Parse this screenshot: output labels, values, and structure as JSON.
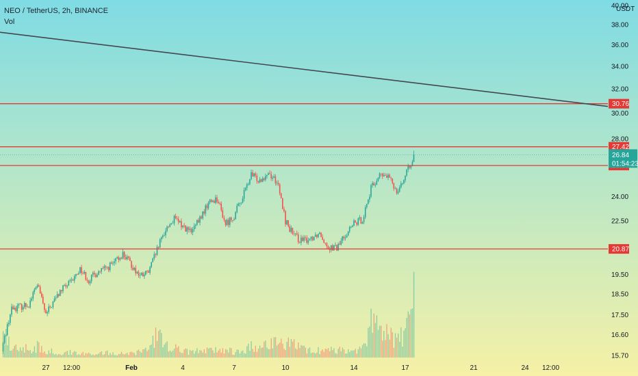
{
  "header": {
    "symbol": "NEO / TetherUS, 2h, BINANCE",
    "volume_label": "Vol"
  },
  "colors": {
    "up": "#26a69a",
    "down": "#ef5350",
    "level_line": "#e53935",
    "trend_line": "#434651",
    "bg_top": "#7fdbe4",
    "bg_bottom": "#f6f1a6"
  },
  "chart_data": {
    "type": "candlestick",
    "title": "NEO / TetherUS, 2h, BINANCE",
    "currency_label": "USDT",
    "y_axis": {
      "labels": [
        "40.00",
        "38.00",
        "36.00",
        "34.00",
        "32.00",
        "30.00",
        "28.00",
        "24.00",
        "22.50",
        "19.50",
        "18.50",
        "17.50",
        "16.60",
        "15.70"
      ],
      "values": [
        40,
        38,
        36,
        34,
        32,
        30,
        28,
        24,
        22.5,
        19.5,
        18.5,
        17.5,
        16.6,
        15.7
      ],
      "scale": "log"
    },
    "x_axis": {
      "labels": [
        "27",
        "12:00",
        "Feb",
        "4",
        "7",
        "10",
        "14",
        "17",
        "21",
        "24",
        "12:00"
      ]
    },
    "price_levels": [
      {
        "label": "30.76",
        "value": 30.76
      },
      {
        "label": "27.42",
        "value": 27.42
      },
      {
        "label": "26.08",
        "value": 26.08
      },
      {
        "label": "20.87",
        "value": 20.87
      }
    ],
    "last_price": {
      "label": "26.84",
      "value": 26.84,
      "countdown": "01:54:23"
    },
    "trend_line": {
      "start": {
        "date": "Jan 24",
        "price": 37.3
      },
      "end": {
        "date": "Feb 25",
        "price": 31.2
      }
    },
    "series": [
      {
        "name": "Close",
        "points": [
          {
            "date": "Jan 24 12:00",
            "close": 16.2
          },
          {
            "date": "Jan 25 00:00",
            "close": 17.8
          },
          {
            "date": "Jan 26 00:00",
            "close": 18.0
          },
          {
            "date": "Jan 26 12:00",
            "close": 19.0
          },
          {
            "date": "Jan 27 00:00",
            "close": 17.5
          },
          {
            "date": "Jan 27 12:00",
            "close": 18.2
          },
          {
            "date": "Jan 28 00:00",
            "close": 18.8
          },
          {
            "date": "Jan 28 12:00",
            "close": 19.1
          },
          {
            "date": "Jan 29 00:00",
            "close": 19.8
          },
          {
            "date": "Jan 29 12:00",
            "close": 19.2
          },
          {
            "date": "Jan 30 00:00",
            "close": 19.6
          },
          {
            "date": "Jan 30 12:00",
            "close": 19.8
          },
          {
            "date": "Jan 31 00:00",
            "close": 20.1
          },
          {
            "date": "Jan 31 12:00",
            "close": 20.6
          },
          {
            "date": "Feb 1 00:00",
            "close": 20.0
          },
          {
            "date": "Feb 1 12:00",
            "close": 19.4
          },
          {
            "date": "Feb 2 00:00",
            "close": 19.6
          },
          {
            "date": "Feb 2 12:00",
            "close": 20.8
          },
          {
            "date": "Feb 3 00:00",
            "close": 22.0
          },
          {
            "date": "Feb 3 12:00",
            "close": 22.6
          },
          {
            "date": "Feb 4 00:00",
            "close": 22.2
          },
          {
            "date": "Feb 4 12:00",
            "close": 21.8
          },
          {
            "date": "Feb 5 00:00",
            "close": 22.6
          },
          {
            "date": "Feb 5 12:00",
            "close": 23.6
          },
          {
            "date": "Feb 6 00:00",
            "close": 23.9
          },
          {
            "date": "Feb 6 12:00",
            "close": 22.3
          },
          {
            "date": "Feb 7 00:00",
            "close": 22.8
          },
          {
            "date": "Feb 7 12:00",
            "close": 24.0
          },
          {
            "date": "Feb 8 00:00",
            "close": 25.4
          },
          {
            "date": "Feb 8 12:00",
            "close": 25.1
          },
          {
            "date": "Feb 9 00:00",
            "close": 25.6
          },
          {
            "date": "Feb 9 12:00",
            "close": 25.0
          },
          {
            "date": "Feb 10 00:00",
            "close": 22.5
          },
          {
            "date": "Feb 10 12:00",
            "close": 21.6
          },
          {
            "date": "Feb 11 00:00",
            "close": 21.3
          },
          {
            "date": "Feb 11 12:00",
            "close": 21.5
          },
          {
            "date": "Feb 12 00:00",
            "close": 21.8
          },
          {
            "date": "Feb 12 12:00",
            "close": 21.0
          },
          {
            "date": "Feb 13 00:00",
            "close": 20.9
          },
          {
            "date": "Feb 13 12:00",
            "close": 21.7
          },
          {
            "date": "Feb 14 00:00",
            "close": 22.3
          },
          {
            "date": "Feb 14 12:00",
            "close": 22.6
          },
          {
            "date": "Feb 15 00:00",
            "close": 24.5
          },
          {
            "date": "Feb 15 12:00",
            "close": 25.4
          },
          {
            "date": "Feb 16 00:00",
            "close": 25.3
          },
          {
            "date": "Feb 16 12:00",
            "close": 24.4
          },
          {
            "date": "Feb 17 00:00",
            "close": 25.3
          },
          {
            "date": "Feb 17 12:00",
            "close": 26.84
          }
        ]
      },
      {
        "name": "Vol",
        "points": [
          {
            "date": "Jan 24 12:00",
            "volume": 1.6
          },
          {
            "date": "Jan 25 00:00",
            "volume": 0.9
          },
          {
            "date": "Jan 26 00:00",
            "volume": 0.6
          },
          {
            "date": "Jan 26 12:00",
            "volume": 0.8
          },
          {
            "date": "Jan 27 00:00",
            "volume": 0.5
          },
          {
            "date": "Jan 27 12:00",
            "volume": 0.4
          },
          {
            "date": "Jan 28 00:00",
            "volume": 0.35
          },
          {
            "date": "Jan 28 12:00",
            "volume": 0.4
          },
          {
            "date": "Jan 29 00:00",
            "volume": 0.4
          },
          {
            "date": "Jan 29 12:00",
            "volume": 0.3
          },
          {
            "date": "Jan 30 00:00",
            "volume": 0.3
          },
          {
            "date": "Jan 30 12:00",
            "volume": 0.35
          },
          {
            "date": "Jan 31 00:00",
            "volume": 0.3
          },
          {
            "date": "Jan 31 12:00",
            "volume": 0.35
          },
          {
            "date": "Feb 1 00:00",
            "volume": 0.3
          },
          {
            "date": "Feb 1 12:00",
            "volume": 0.45
          },
          {
            "date": "Feb 2 00:00",
            "volume": 0.5
          },
          {
            "date": "Feb 2 12:00",
            "volume": 1.7
          },
          {
            "date": "Feb 3 00:00",
            "volume": 0.9
          },
          {
            "date": "Feb 3 12:00",
            "volume": 0.7
          },
          {
            "date": "Feb 4 00:00",
            "volume": 0.5
          },
          {
            "date": "Feb 4 12:00",
            "volume": 0.4
          },
          {
            "date": "Feb 5 00:00",
            "volume": 0.5
          },
          {
            "date": "Feb 5 12:00",
            "volume": 0.6
          },
          {
            "date": "Feb 6 00:00",
            "volume": 0.5
          },
          {
            "date": "Feb 6 12:00",
            "volume": 0.6
          },
          {
            "date": "Feb 7 00:00",
            "volume": 0.4
          },
          {
            "date": "Feb 7 12:00",
            "volume": 0.5
          },
          {
            "date": "Feb 8 00:00",
            "volume": 0.8
          },
          {
            "date": "Feb 8 12:00",
            "volume": 0.6
          },
          {
            "date": "Feb 9 00:00",
            "volume": 1.2
          },
          {
            "date": "Feb 9 12:00",
            "volume": 1.0
          },
          {
            "date": "Feb 10 00:00",
            "volume": 1.0
          },
          {
            "date": "Feb 10 12:00",
            "volume": 0.9
          },
          {
            "date": "Feb 11 00:00",
            "volume": 0.6
          },
          {
            "date": "Feb 11 12:00",
            "volume": 0.5
          },
          {
            "date": "Feb 12 00:00",
            "volume": 0.5
          },
          {
            "date": "Feb 12 12:00",
            "volume": 0.6
          },
          {
            "date": "Feb 13 00:00",
            "volume": 0.5
          },
          {
            "date": "Feb 13 12:00",
            "volume": 0.6
          },
          {
            "date": "Feb 14 00:00",
            "volume": 0.5
          },
          {
            "date": "Feb 14 12:00",
            "volume": 0.6
          },
          {
            "date": "Feb 15 00:00",
            "volume": 2.7
          },
          {
            "date": "Feb 15 12:00",
            "volume": 2.2
          },
          {
            "date": "Feb 16 00:00",
            "volume": 1.8
          },
          {
            "date": "Feb 16 12:00",
            "volume": 1.4
          },
          {
            "date": "Feb 17 00:00",
            "volume": 1.6
          },
          {
            "date": "Feb 17 12:00",
            "volume": 5.7
          }
        ]
      }
    ],
    "grid": false,
    "legend_position": "top-left"
  }
}
